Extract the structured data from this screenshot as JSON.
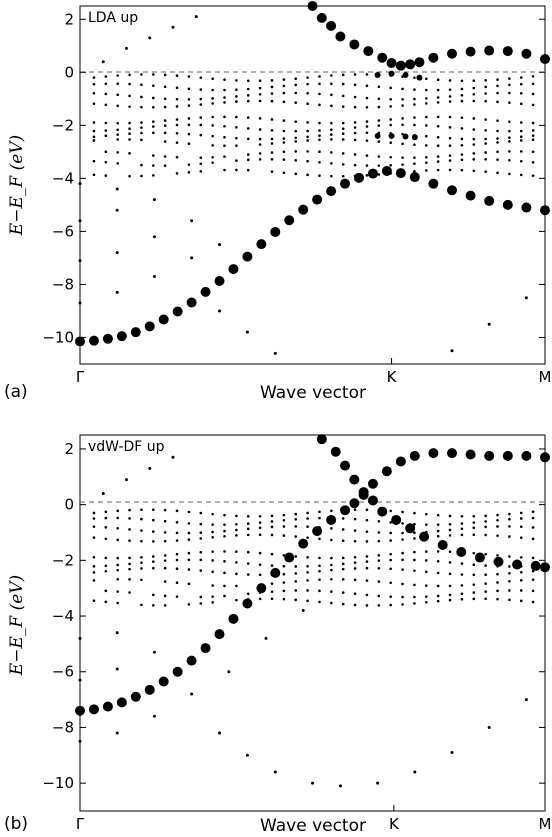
{
  "chart_data": [
    {
      "type": "scatter",
      "panel": "(a)",
      "label": "LDA up",
      "ylabel": "E−E_F (eV)",
      "xlabel": "Wave vector",
      "x_ticks": [
        "Γ",
        "K",
        "M"
      ],
      "y_ticks": [
        -10,
        -8,
        -6,
        -4,
        -2,
        0,
        2
      ],
      "ylim": [
        -11,
        2.5
      ],
      "fermi_line": 0,
      "grid": false,
      "series": [
        {
          "values": [
            [
              0.0,
              -10.15
            ],
            [
              0.03,
              -10.12
            ],
            [
              0.06,
              -10.05
            ],
            [
              0.09,
              -9.95
            ],
            [
              0.12,
              -9.8
            ],
            [
              0.15,
              -9.58
            ],
            [
              0.18,
              -9.32
            ],
            [
              0.21,
              -9.02
            ],
            [
              0.24,
              -8.68
            ],
            [
              0.27,
              -8.28
            ],
            [
              0.3,
              -7.87
            ],
            [
              0.33,
              -7.42
            ],
            [
              0.36,
              -6.95
            ],
            [
              0.39,
              -6.48
            ],
            [
              0.42,
              -6.02
            ],
            [
              0.45,
              -5.58
            ],
            [
              0.48,
              -5.18
            ],
            [
              0.51,
              -4.8
            ],
            [
              0.54,
              -4.48
            ],
            [
              0.57,
              -4.2
            ],
            [
              0.6,
              -3.98
            ],
            [
              0.63,
              -3.82
            ],
            [
              0.66,
              -3.72
            ],
            [
              0.69,
              -3.8
            ],
            [
              0.72,
              -3.95
            ],
            [
              0.76,
              -4.2
            ],
            [
              0.8,
              -4.45
            ],
            [
              0.84,
              -4.65
            ],
            [
              0.88,
              -4.85
            ],
            [
              0.92,
              -5.0
            ],
            [
              0.96,
              -5.1
            ],
            [
              1.0,
              -5.2
            ]
          ],
          "markerSize": 5
        },
        {
          "values": [
            [
              0.5,
              2.5
            ],
            [
              0.52,
              2.05
            ],
            [
              0.54,
              1.75
            ],
            [
              0.56,
              1.35
            ],
            [
              0.59,
              1.05
            ],
            [
              0.62,
              0.8
            ],
            [
              0.65,
              0.55
            ],
            [
              0.67,
              0.35
            ],
            [
              0.69,
              0.25
            ],
            [
              0.71,
              0.3
            ],
            [
              0.73,
              0.38
            ],
            [
              0.76,
              0.55
            ],
            [
              0.8,
              0.7
            ],
            [
              0.84,
              0.78
            ],
            [
              0.88,
              0.82
            ],
            [
              0.92,
              0.8
            ],
            [
              0.96,
              0.7
            ],
            [
              1.0,
              0.5
            ]
          ],
          "markerSize": 5
        },
        {
          "values": [
            [
              0.64,
              -2.4
            ],
            [
              0.67,
              -2.4
            ],
            [
              0.7,
              -2.42
            ],
            [
              0.72,
              -2.45
            ],
            [
              0.64,
              -0.1
            ],
            [
              0.67,
              -0.05
            ],
            [
              0.7,
              -0.1
            ],
            [
              0.73,
              -0.2
            ]
          ],
          "markerSize": 3
        },
        {
          "values": [
            [
              0.0,
              -8.7
            ],
            [
              0.08,
              -8.3
            ],
            [
              0.16,
              -7.7
            ],
            [
              0.24,
              -7.0
            ],
            [
              0.3,
              -6.5
            ],
            [
              0.0,
              -7.1
            ],
            [
              0.08,
              -6.8
            ],
            [
              0.16,
              -6.2
            ],
            [
              0.24,
              -5.6
            ],
            [
              0.0,
              -5.6
            ],
            [
              0.08,
              -5.2
            ],
            [
              0.0,
              -4.2
            ],
            [
              0.08,
              -4.4
            ],
            [
              0.16,
              -4.8
            ],
            [
              0.3,
              -9.0
            ],
            [
              0.36,
              -9.8
            ],
            [
              0.42,
              -10.6
            ],
            [
              0.8,
              -10.5
            ],
            [
              0.88,
              -9.5
            ],
            [
              0.96,
              -8.5
            ],
            [
              0.05,
              0.4
            ],
            [
              0.1,
              0.9
            ],
            [
              0.15,
              1.3
            ],
            [
              0.2,
              1.7
            ],
            [
              0.25,
              2.1
            ]
          ],
          "markerSize": 1.5
        }
      ]
    },
    {
      "type": "scatter",
      "panel": "(b)",
      "label": "vdW-DF up",
      "ylabel": "E−E_F (eV)",
      "xlabel": "Wave vector",
      "x_ticks": [
        "Γ",
        "K",
        "M"
      ],
      "y_ticks": [
        -10,
        -8,
        -6,
        -4,
        -2,
        0,
        2
      ],
      "ylim": [
        -11,
        2.5
      ],
      "fermi_line": 0,
      "grid": false,
      "series": [
        {
          "values": [
            [
              0.0,
              -7.4
            ],
            [
              0.03,
              -7.35
            ],
            [
              0.06,
              -7.25
            ],
            [
              0.09,
              -7.1
            ],
            [
              0.12,
              -6.9
            ],
            [
              0.15,
              -6.65
            ],
            [
              0.18,
              -6.35
            ],
            [
              0.21,
              -6.0
            ],
            [
              0.24,
              -5.6
            ],
            [
              0.27,
              -5.15
            ],
            [
              0.3,
              -4.65
            ],
            [
              0.33,
              -4.1
            ],
            [
              0.36,
              -3.55
            ],
            [
              0.39,
              -3.0
            ],
            [
              0.42,
              -2.45
            ],
            [
              0.45,
              -1.9
            ],
            [
              0.48,
              -1.4
            ],
            [
              0.51,
              -0.95
            ],
            [
              0.54,
              -0.55
            ],
            [
              0.57,
              -0.2
            ],
            [
              0.59,
              0.05
            ],
            [
              0.61,
              0.35
            ],
            [
              0.63,
              0.75
            ],
            [
              0.66,
              1.2
            ],
            [
              0.69,
              1.55
            ],
            [
              0.72,
              1.75
            ],
            [
              0.76,
              1.85
            ],
            [
              0.8,
              1.85
            ],
            [
              0.84,
              1.8
            ],
            [
              0.88,
              1.75
            ],
            [
              0.92,
              1.75
            ],
            [
              0.96,
              1.75
            ],
            [
              1.0,
              1.7
            ]
          ],
          "markerSize": 5
        },
        {
          "values": [
            [
              0.52,
              2.35
            ],
            [
              0.55,
              1.9
            ],
            [
              0.57,
              1.4
            ],
            [
              0.59,
              0.9
            ],
            [
              0.61,
              0.45
            ],
            [
              0.63,
              0.15
            ],
            [
              0.65,
              -0.25
            ],
            [
              0.68,
              -0.55
            ],
            [
              0.71,
              -0.85
            ],
            [
              0.74,
              -1.15
            ],
            [
              0.78,
              -1.45
            ],
            [
              0.82,
              -1.7
            ],
            [
              0.86,
              -1.9
            ],
            [
              0.9,
              -2.05
            ],
            [
              0.94,
              -2.15
            ],
            [
              0.98,
              -2.2
            ],
            [
              1.0,
              -2.25
            ]
          ],
          "markerSize": 5
        },
        {
          "values": [
            [
              0.0,
              -8.5
            ],
            [
              0.08,
              -8.2
            ],
            [
              0.16,
              -7.6
            ],
            [
              0.24,
              -6.8
            ],
            [
              0.32,
              -6.0
            ],
            [
              0.4,
              -4.8
            ],
            [
              0.48,
              -3.8
            ],
            [
              0.0,
              -6.3
            ],
            [
              0.08,
              -5.9
            ],
            [
              0.16,
              -5.3
            ],
            [
              0.0,
              -4.8
            ],
            [
              0.08,
              -4.6
            ],
            [
              0.3,
              -8.2
            ],
            [
              0.36,
              -9.0
            ],
            [
              0.42,
              -9.6
            ],
            [
              0.5,
              -10.0
            ],
            [
              0.56,
              -10.1
            ],
            [
              0.64,
              -10.0
            ],
            [
              0.72,
              -9.6
            ],
            [
              0.8,
              -8.9
            ],
            [
              0.88,
              -8.0
            ],
            [
              0.96,
              -7.0
            ],
            [
              0.05,
              0.4
            ],
            [
              0.1,
              0.9
            ],
            [
              0.15,
              1.3
            ],
            [
              0.2,
              1.7
            ]
          ],
          "markerSize": 1.5
        }
      ]
    }
  ]
}
